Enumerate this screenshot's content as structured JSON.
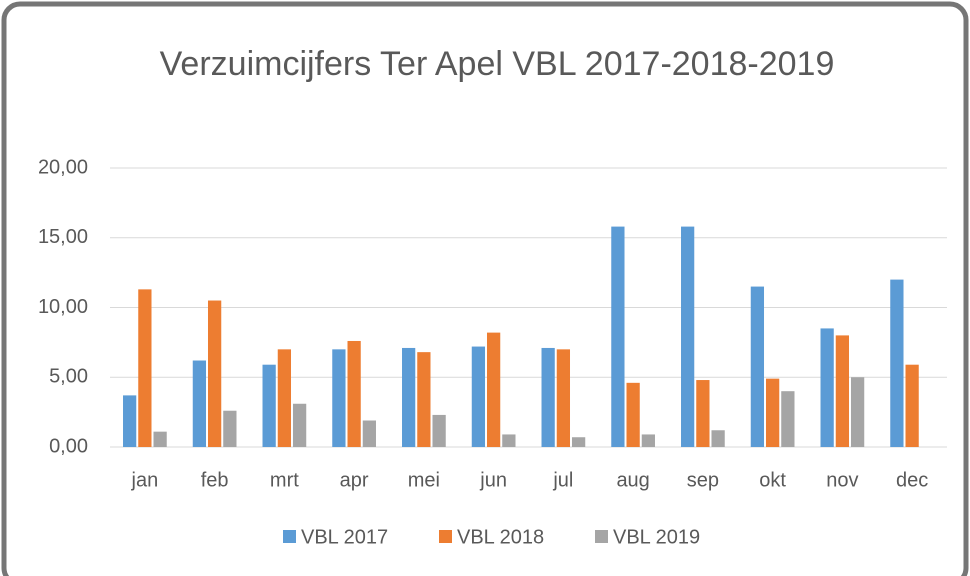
{
  "chart_data": {
    "type": "bar",
    "title": "Verzuimcijfers Ter Apel VBL 2017-2018-2019",
    "categories": [
      "jan",
      "feb",
      "mrt",
      "apr",
      "mei",
      "jun",
      "jul",
      "aug",
      "sep",
      "okt",
      "nov",
      "dec"
    ],
    "series": [
      {
        "name": "VBL 2017",
        "color": "#5b9bd5",
        "values": [
          3.7,
          6.2,
          5.9,
          7.0,
          7.1,
          7.2,
          7.1,
          15.8,
          15.8,
          11.5,
          8.5,
          12.0
        ]
      },
      {
        "name": "VBL 2018",
        "color": "#ed7d31",
        "values": [
          11.3,
          10.5,
          7.0,
          7.6,
          6.8,
          8.2,
          7.0,
          4.6,
          4.8,
          4.9,
          8.0,
          5.9
        ]
      },
      {
        "name": "VBL 2019",
        "color": "#a5a5a5",
        "values": [
          1.1,
          2.6,
          3.1,
          1.9,
          2.3,
          0.9,
          0.7,
          0.9,
          1.2,
          4.0,
          5.0,
          null
        ]
      }
    ],
    "ylim": [
      0,
      20
    ],
    "yticks": [
      {
        "value": 0,
        "label": "0,00"
      },
      {
        "value": 5,
        "label": "5,00"
      },
      {
        "value": 10,
        "label": "10,00"
      },
      {
        "value": 15,
        "label": "15,00"
      },
      {
        "value": 20,
        "label": "20,00"
      }
    ],
    "grid": true,
    "legend": "bottom"
  }
}
